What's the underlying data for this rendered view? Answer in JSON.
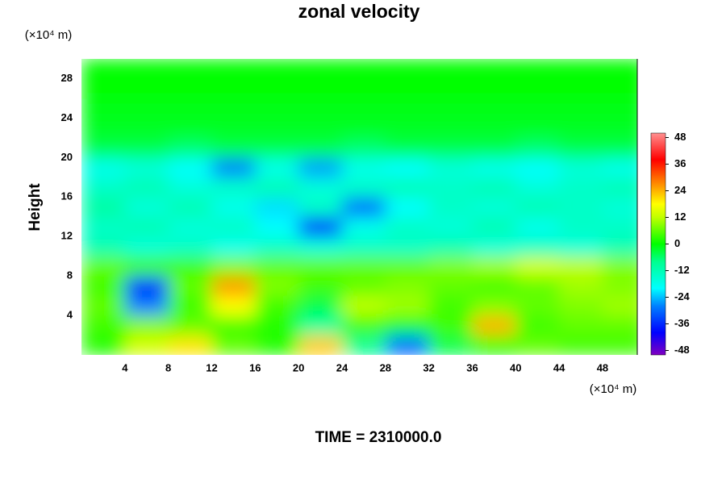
{
  "chart_data": {
    "type": "contour",
    "title": "zonal velocity",
    "y_unit": "(×10⁴ m)",
    "x_unit": "(×10⁴ m)",
    "y_label": "Height",
    "footer": "TIME = 2310000.0",
    "xlim": [
      0,
      51.2
    ],
    "ylim": [
      0,
      30
    ],
    "xticks": [
      4,
      8,
      12,
      16,
      20,
      24,
      28,
      32,
      36,
      40,
      44,
      48
    ],
    "yticks": [
      4,
      8,
      12,
      16,
      20,
      24,
      28
    ],
    "x": [
      2,
      6,
      10,
      14,
      18,
      22,
      26,
      30,
      34,
      38,
      42,
      46,
      50
    ],
    "y": [
      1,
      3,
      5,
      7,
      9,
      11,
      13,
      15,
      17,
      19,
      21,
      23,
      25,
      27,
      29
    ],
    "z": [
      [
        2,
        14,
        20,
        6,
        2,
        22,
        -8,
        -30,
        -4,
        2,
        6,
        4,
        4
      ],
      [
        4,
        8,
        6,
        4,
        2,
        -10,
        4,
        -2,
        4,
        24,
        4,
        6,
        6
      ],
      [
        6,
        -28,
        4,
        18,
        4,
        -4,
        12,
        10,
        4,
        8,
        6,
        8,
        10
      ],
      [
        4,
        -36,
        6,
        26,
        8,
        4,
        6,
        8,
        6,
        4,
        6,
        10,
        8
      ],
      [
        6,
        4,
        4,
        8,
        6,
        6,
        6,
        6,
        8,
        10,
        14,
        12,
        8
      ],
      [
        -12,
        -16,
        -14,
        -18,
        -14,
        -16,
        -14,
        -14,
        -12,
        -16,
        -14,
        -16,
        -12
      ],
      [
        -14,
        -12,
        -16,
        -14,
        -20,
        -36,
        -18,
        -14,
        -16,
        -12,
        -18,
        -14,
        -14
      ],
      [
        -10,
        -16,
        -12,
        -18,
        -22,
        -14,
        -30,
        -20,
        -14,
        -16,
        -12,
        -14,
        -16
      ],
      [
        -14,
        -12,
        -16,
        -14,
        -12,
        -16,
        -14,
        -12,
        -14,
        -12,
        -16,
        -14,
        -12
      ],
      [
        -18,
        -16,
        -20,
        -28,
        -18,
        -26,
        -18,
        -20,
        -16,
        -18,
        -20,
        -16,
        -18
      ],
      [
        -4,
        -4,
        -6,
        -4,
        -4,
        -4,
        -6,
        -4,
        -4,
        -4,
        -6,
        -4,
        -4
      ],
      [
        -2,
        -2,
        -2,
        -2,
        -2,
        -2,
        -2,
        -2,
        -2,
        -2,
        -2,
        -2,
        -2
      ],
      [
        -1,
        -1,
        -1,
        -1,
        -1,
        -1,
        -1,
        -1,
        -1,
        -1,
        -1,
        -1,
        -1
      ],
      [
        0,
        0,
        0,
        0,
        0,
        0,
        0,
        0,
        0,
        0,
        0,
        0,
        0
      ],
      [
        0,
        0,
        0,
        0,
        0,
        0,
        0,
        0,
        0,
        0,
        0,
        0,
        0
      ]
    ],
    "clim": [
      -50,
      50
    ],
    "cticks": [
      -48,
      -36,
      -24,
      -12,
      0,
      12,
      24,
      36,
      48
    ],
    "colormap": [
      {
        "value": -50,
        "color": "#8000c0"
      },
      {
        "value": -40,
        "color": "#0000ff"
      },
      {
        "value": -28,
        "color": "#0080ff"
      },
      {
        "value": -20,
        "color": "#00ffff"
      },
      {
        "value": -8,
        "color": "#00ff90"
      },
      {
        "value": 0,
        "color": "#00ff00"
      },
      {
        "value": 12,
        "color": "#c0ff00"
      },
      {
        "value": 18,
        "color": "#ffff00"
      },
      {
        "value": 28,
        "color": "#ff8000"
      },
      {
        "value": 38,
        "color": "#ff0000"
      },
      {
        "value": 50,
        "color": "#ff9090"
      }
    ]
  }
}
